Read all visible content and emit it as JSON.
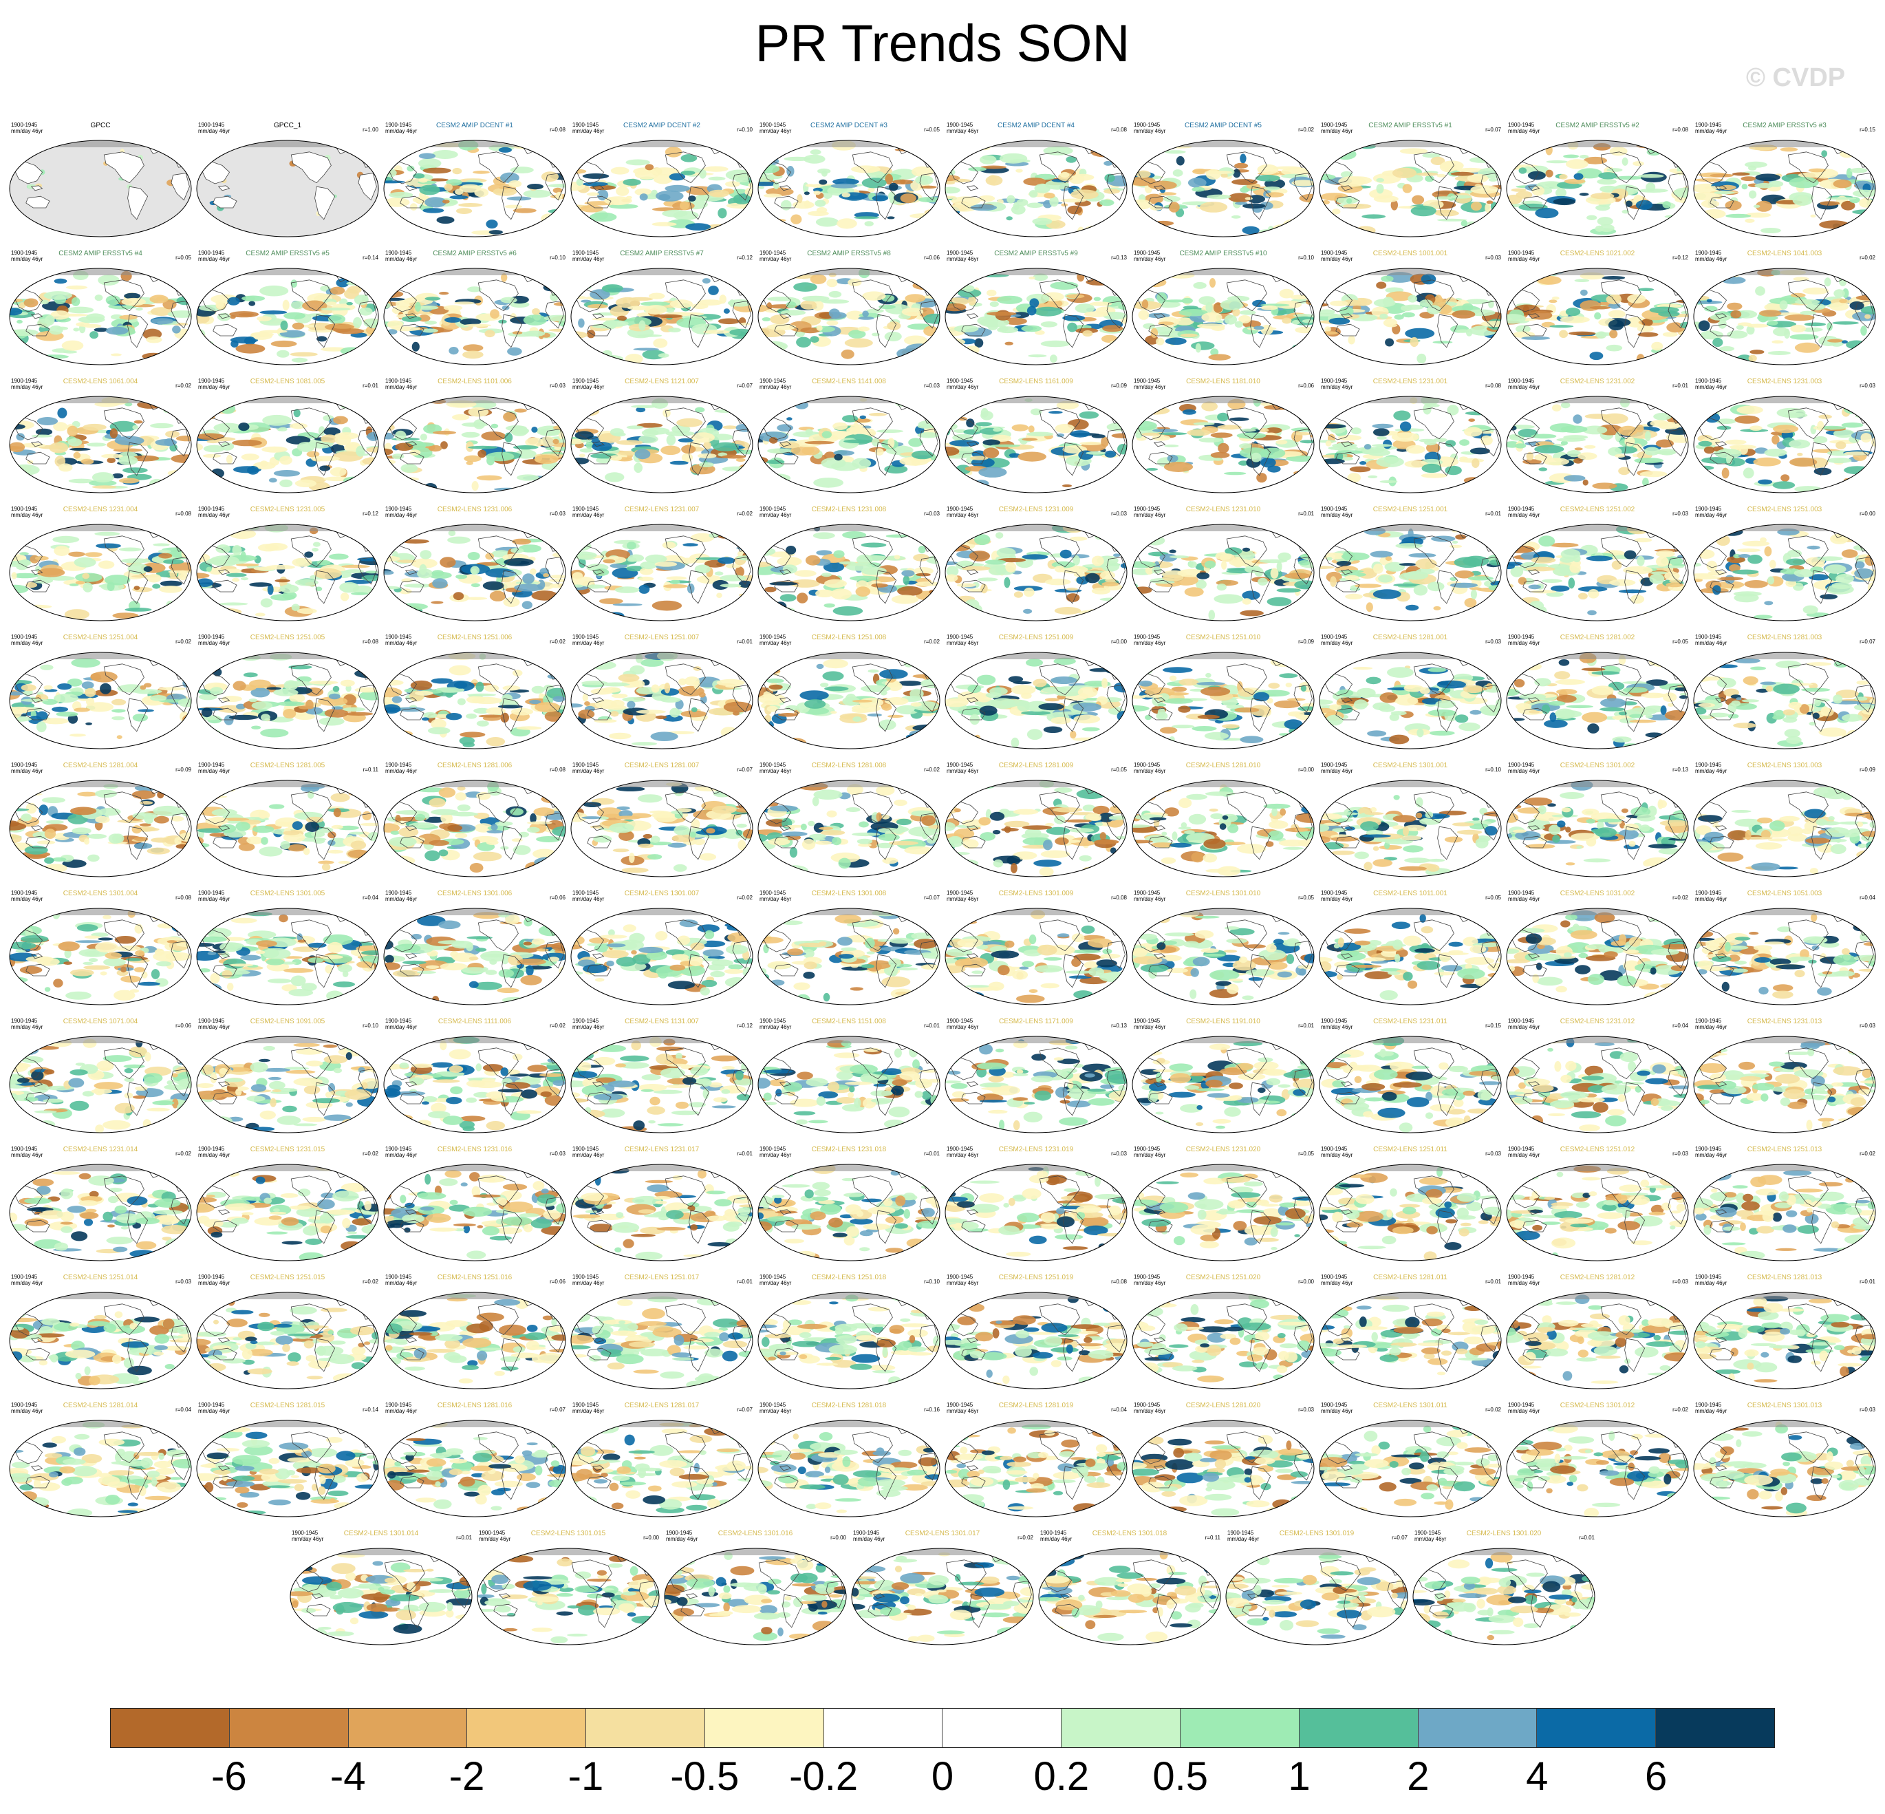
{
  "title": "PR Trends SON",
  "watermark": "© CVDP",
  "period": "1900-1945",
  "units": "mm/day 46yr",
  "panels": [
    {
      "label": "GPCC",
      "group": "obs",
      "r": ""
    },
    {
      "label": "GPCC_1",
      "group": "obs",
      "r": "r=1.00"
    },
    {
      "label": "CESM2 AMIP DCENT #1",
      "group": "dcent",
      "r": "r=0.08"
    },
    {
      "label": "CESM2 AMIP DCENT #2",
      "group": "dcent",
      "r": "r=0.10"
    },
    {
      "label": "CESM2 AMIP DCENT #3",
      "group": "dcent",
      "r": "r=0.05"
    },
    {
      "label": "CESM2 AMIP DCENT #4",
      "group": "dcent",
      "r": "r=0.08"
    },
    {
      "label": "CESM2 AMIP DCENT #5",
      "group": "dcent",
      "r": "r=0.02"
    },
    {
      "label": "CESM2 AMIP ERSSTv5 #1",
      "group": "ersst",
      "r": "r=0.07"
    },
    {
      "label": "CESM2 AMIP ERSSTv5 #2",
      "group": "ersst",
      "r": "r=0.08"
    },
    {
      "label": "CESM2 AMIP ERSSTv5 #3",
      "group": "ersst",
      "r": "r=0.15"
    },
    {
      "label": "CESM2 AMIP ERSSTv5 #4",
      "group": "ersst",
      "r": "r=0.05"
    },
    {
      "label": "CESM2 AMIP ERSSTv5 #5",
      "group": "ersst",
      "r": "r=0.14"
    },
    {
      "label": "CESM2 AMIP ERSSTv5 #6",
      "group": "ersst",
      "r": "r=0.10"
    },
    {
      "label": "CESM2 AMIP ERSSTv5 #7",
      "group": "ersst",
      "r": "r=0.12"
    },
    {
      "label": "CESM2 AMIP ERSSTv5 #8",
      "group": "ersst",
      "r": "r=0.06"
    },
    {
      "label": "CESM2 AMIP ERSSTv5 #9",
      "group": "ersst",
      "r": "r=0.13"
    },
    {
      "label": "CESM2 AMIP ERSSTv5 #10",
      "group": "ersst",
      "r": "r=0.10"
    },
    {
      "label": "CESM2-LENS 1001.001",
      "group": "lens",
      "r": "r=0.03"
    },
    {
      "label": "CESM2-LENS 1021.002",
      "group": "lens",
      "r": "r=0.12"
    },
    {
      "label": "CESM2-LENS 1041.003",
      "group": "lens",
      "r": "r=0.02"
    },
    {
      "label": "CESM2-LENS 1061.004",
      "group": "lens",
      "r": "r=0.02"
    },
    {
      "label": "CESM2-LENS 1081.005",
      "group": "lens",
      "r": "r=0.01"
    },
    {
      "label": "CESM2-LENS 1101.006",
      "group": "lens",
      "r": "r=0.03"
    },
    {
      "label": "CESM2-LENS 1121.007",
      "group": "lens",
      "r": "r=0.07"
    },
    {
      "label": "CESM2-LENS 1141.008",
      "group": "lens",
      "r": "r=0.03"
    },
    {
      "label": "CESM2-LENS 1161.009",
      "group": "lens",
      "r": "r=0.09"
    },
    {
      "label": "CESM2-LENS 1181.010",
      "group": "lens",
      "r": "r=0.06"
    },
    {
      "label": "CESM2-LENS 1231.001",
      "group": "lens",
      "r": "r=0.08"
    },
    {
      "label": "CESM2-LENS 1231.002",
      "group": "lens",
      "r": "r=0.01"
    },
    {
      "label": "CESM2-LENS 1231.003",
      "group": "lens",
      "r": "r=0.03"
    },
    {
      "label": "CESM2-LENS 1231.004",
      "group": "lens",
      "r": "r=0.08"
    },
    {
      "label": "CESM2-LENS 1231.005",
      "group": "lens",
      "r": "r=0.12"
    },
    {
      "label": "CESM2-LENS 1231.006",
      "group": "lens",
      "r": "r=0.03"
    },
    {
      "label": "CESM2-LENS 1231.007",
      "group": "lens",
      "r": "r=0.02"
    },
    {
      "label": "CESM2-LENS 1231.008",
      "group": "lens",
      "r": "r=0.03"
    },
    {
      "label": "CESM2-LENS 1231.009",
      "group": "lens",
      "r": "r=0.03"
    },
    {
      "label": "CESM2-LENS 1231.010",
      "group": "lens",
      "r": "r=0.01"
    },
    {
      "label": "CESM2-LENS 1251.001",
      "group": "lens",
      "r": "r=0.01"
    },
    {
      "label": "CESM2-LENS 1251.002",
      "group": "lens",
      "r": "r=0.03"
    },
    {
      "label": "CESM2-LENS 1251.003",
      "group": "lens",
      "r": "r=0.00"
    },
    {
      "label": "CESM2-LENS 1251.004",
      "group": "lens",
      "r": "r=0.02"
    },
    {
      "label": "CESM2-LENS 1251.005",
      "group": "lens",
      "r": "r=0.08"
    },
    {
      "label": "CESM2-LENS 1251.006",
      "group": "lens",
      "r": "r=0.02"
    },
    {
      "label": "CESM2-LENS 1251.007",
      "group": "lens",
      "r": "r=0.01"
    },
    {
      "label": "CESM2-LENS 1251.008",
      "group": "lens",
      "r": "r=0.02"
    },
    {
      "label": "CESM2-LENS 1251.009",
      "group": "lens",
      "r": "r=0.00"
    },
    {
      "label": "CESM2-LENS 1251.010",
      "group": "lens",
      "r": "r=0.09"
    },
    {
      "label": "CESM2-LENS 1281.001",
      "group": "lens",
      "r": "r=0.03"
    },
    {
      "label": "CESM2-LENS 1281.002",
      "group": "lens",
      "r": "r=0.05"
    },
    {
      "label": "CESM2-LENS 1281.003",
      "group": "lens",
      "r": "r=0.07"
    },
    {
      "label": "CESM2-LENS 1281.004",
      "group": "lens",
      "r": "r=0.09"
    },
    {
      "label": "CESM2-LENS 1281.005",
      "group": "lens",
      "r": "r=0.11"
    },
    {
      "label": "CESM2-LENS 1281.006",
      "group": "lens",
      "r": "r=0.08"
    },
    {
      "label": "CESM2-LENS 1281.007",
      "group": "lens",
      "r": "r=0.07"
    },
    {
      "label": "CESM2-LENS 1281.008",
      "group": "lens",
      "r": "r=0.02"
    },
    {
      "label": "CESM2-LENS 1281.009",
      "group": "lens",
      "r": "r=0.05"
    },
    {
      "label": "CESM2-LENS 1281.010",
      "group": "lens",
      "r": "r=0.00"
    },
    {
      "label": "CESM2-LENS 1301.001",
      "group": "lens",
      "r": "r=0.10"
    },
    {
      "label": "CESM2-LENS 1301.002",
      "group": "lens",
      "r": "r=0.13"
    },
    {
      "label": "CESM2-LENS 1301.003",
      "group": "lens",
      "r": "r=0.09"
    },
    {
      "label": "CESM2-LENS 1301.004",
      "group": "lens",
      "r": "r=0.08"
    },
    {
      "label": "CESM2-LENS 1301.005",
      "group": "lens",
      "r": "r=0.04"
    },
    {
      "label": "CESM2-LENS 1301.006",
      "group": "lens",
      "r": "r=0.06"
    },
    {
      "label": "CESM2-LENS 1301.007",
      "group": "lens",
      "r": "r=0.02"
    },
    {
      "label": "CESM2-LENS 1301.008",
      "group": "lens",
      "r": "r=0.07"
    },
    {
      "label": "CESM2-LENS 1301.009",
      "group": "lens",
      "r": "r=0.08"
    },
    {
      "label": "CESM2-LENS 1301.010",
      "group": "lens",
      "r": "r=0.05"
    },
    {
      "label": "CESM2-LENS 1011.001",
      "group": "lens",
      "r": "r=0.05"
    },
    {
      "label": "CESM2-LENS 1031.002",
      "group": "lens",
      "r": "r=0.02"
    },
    {
      "label": "CESM2-LENS 1051.003",
      "group": "lens",
      "r": "r=0.04"
    },
    {
      "label": "CESM2-LENS 1071.004",
      "group": "lens",
      "r": "r=0.06"
    },
    {
      "label": "CESM2-LENS 1091.005",
      "group": "lens",
      "r": "r=0.10"
    },
    {
      "label": "CESM2-LENS 1111.006",
      "group": "lens",
      "r": "r=0.02"
    },
    {
      "label": "CESM2-LENS 1131.007",
      "group": "lens",
      "r": "r=0.12"
    },
    {
      "label": "CESM2-LENS 1151.008",
      "group": "lens",
      "r": "r=0.01"
    },
    {
      "label": "CESM2-LENS 1171.009",
      "group": "lens",
      "r": "r=0.13"
    },
    {
      "label": "CESM2-LENS 1191.010",
      "group": "lens",
      "r": "r=0.01"
    },
    {
      "label": "CESM2-LENS 1231.011",
      "group": "lens",
      "r": "r=0.15"
    },
    {
      "label": "CESM2-LENS 1231.012",
      "group": "lens",
      "r": "r=0.04"
    },
    {
      "label": "CESM2-LENS 1231.013",
      "group": "lens",
      "r": "r=0.03"
    },
    {
      "label": "CESM2-LENS 1231.014",
      "group": "lens",
      "r": "r=0.02"
    },
    {
      "label": "CESM2-LENS 1231.015",
      "group": "lens",
      "r": "r=0.02"
    },
    {
      "label": "CESM2-LENS 1231.016",
      "group": "lens",
      "r": "r=0.03"
    },
    {
      "label": "CESM2-LENS 1231.017",
      "group": "lens",
      "r": "r=0.01"
    },
    {
      "label": "CESM2-LENS 1231.018",
      "group": "lens",
      "r": "r=0.01"
    },
    {
      "label": "CESM2-LENS 1231.019",
      "group": "lens",
      "r": "r=0.03"
    },
    {
      "label": "CESM2-LENS 1231.020",
      "group": "lens",
      "r": "r=0.05"
    },
    {
      "label": "CESM2-LENS 1251.011",
      "group": "lens",
      "r": "r=0.03"
    },
    {
      "label": "CESM2-LENS 1251.012",
      "group": "lens",
      "r": "r=0.03"
    },
    {
      "label": "CESM2-LENS 1251.013",
      "group": "lens",
      "r": "r=0.02"
    },
    {
      "label": "CESM2-LENS 1251.014",
      "group": "lens",
      "r": "r=0.03"
    },
    {
      "label": "CESM2-LENS 1251.015",
      "group": "lens",
      "r": "r=0.02"
    },
    {
      "label": "CESM2-LENS 1251.016",
      "group": "lens",
      "r": "r=0.06"
    },
    {
      "label": "CESM2-LENS 1251.017",
      "group": "lens",
      "r": "r=0.01"
    },
    {
      "label": "CESM2-LENS 1251.018",
      "group": "lens",
      "r": "r=0.10"
    },
    {
      "label": "CESM2-LENS 1251.019",
      "group": "lens",
      "r": "r=0.08"
    },
    {
      "label": "CESM2-LENS 1251.020",
      "group": "lens",
      "r": "r=0.00"
    },
    {
      "label": "CESM2-LENS 1281.011",
      "group": "lens",
      "r": "r=0.01"
    },
    {
      "label": "CESM2-LENS 1281.012",
      "group": "lens",
      "r": "r=0.03"
    },
    {
      "label": "CESM2-LENS 1281.013",
      "group": "lens",
      "r": "r=0.01"
    },
    {
      "label": "CESM2-LENS 1281.014",
      "group": "lens",
      "r": "r=0.04"
    },
    {
      "label": "CESM2-LENS 1281.015",
      "group": "lens",
      "r": "r=0.14"
    },
    {
      "label": "CESM2-LENS 1281.016",
      "group": "lens",
      "r": "r=0.07"
    },
    {
      "label": "CESM2-LENS 1281.017",
      "group": "lens",
      "r": "r=0.07"
    },
    {
      "label": "CESM2-LENS 1281.018",
      "group": "lens",
      "r": "r=0.16"
    },
    {
      "label": "CESM2-LENS 1281.019",
      "group": "lens",
      "r": "r=0.04"
    },
    {
      "label": "CESM2-LENS 1281.020",
      "group": "lens",
      "r": "r=0.03"
    },
    {
      "label": "CESM2-LENS 1301.011",
      "group": "lens",
      "r": "r=0.02"
    },
    {
      "label": "CESM2-LENS 1301.012",
      "group": "lens",
      "r": "r=0.02"
    },
    {
      "label": "CESM2-LENS 1301.013",
      "group": "lens",
      "r": "r=0.03"
    },
    {
      "label": "CESM2-LENS 1301.014",
      "group": "lens",
      "r": "r=0.01"
    },
    {
      "label": "CESM2-LENS 1301.015",
      "group": "lens",
      "r": "r=0.00"
    },
    {
      "label": "CESM2-LENS 1301.016",
      "group": "lens",
      "r": "r=0.00"
    },
    {
      "label": "CESM2-LENS 1301.017",
      "group": "lens",
      "r": "r=0.02"
    },
    {
      "label": "CESM2-LENS 1301.018",
      "group": "lens",
      "r": "r=0.11"
    },
    {
      "label": "CESM2-LENS 1301.019",
      "group": "lens",
      "r": "r=0.07"
    },
    {
      "label": "CESM2-LENS 1301.020",
      "group": "lens",
      "r": "r=0.01"
    }
  ],
  "title_colors": {
    "obs": "#000000",
    "dcent": "#1f6fa0",
    "ersst": "#4d8c5a",
    "lens": "#d4b84a"
  },
  "colorbar": {
    "labels": [
      "-6",
      "-4",
      "-2",
      "-1",
      "-0.5",
      "-0.2",
      "0",
      "0.2",
      "0.5",
      "1",
      "2",
      "4",
      "6"
    ],
    "colors": [
      "#b3692a",
      "#cc8540",
      "#e0a45a",
      "#f2c77a",
      "#f5e0a0",
      "#fdf5c0",
      "#ffffff",
      "#ffffff",
      "#c8f5c8",
      "#9eebb4",
      "#55bf9a",
      "#6ea8c6",
      "#0b6aa6",
      "#073a5c"
    ]
  }
}
